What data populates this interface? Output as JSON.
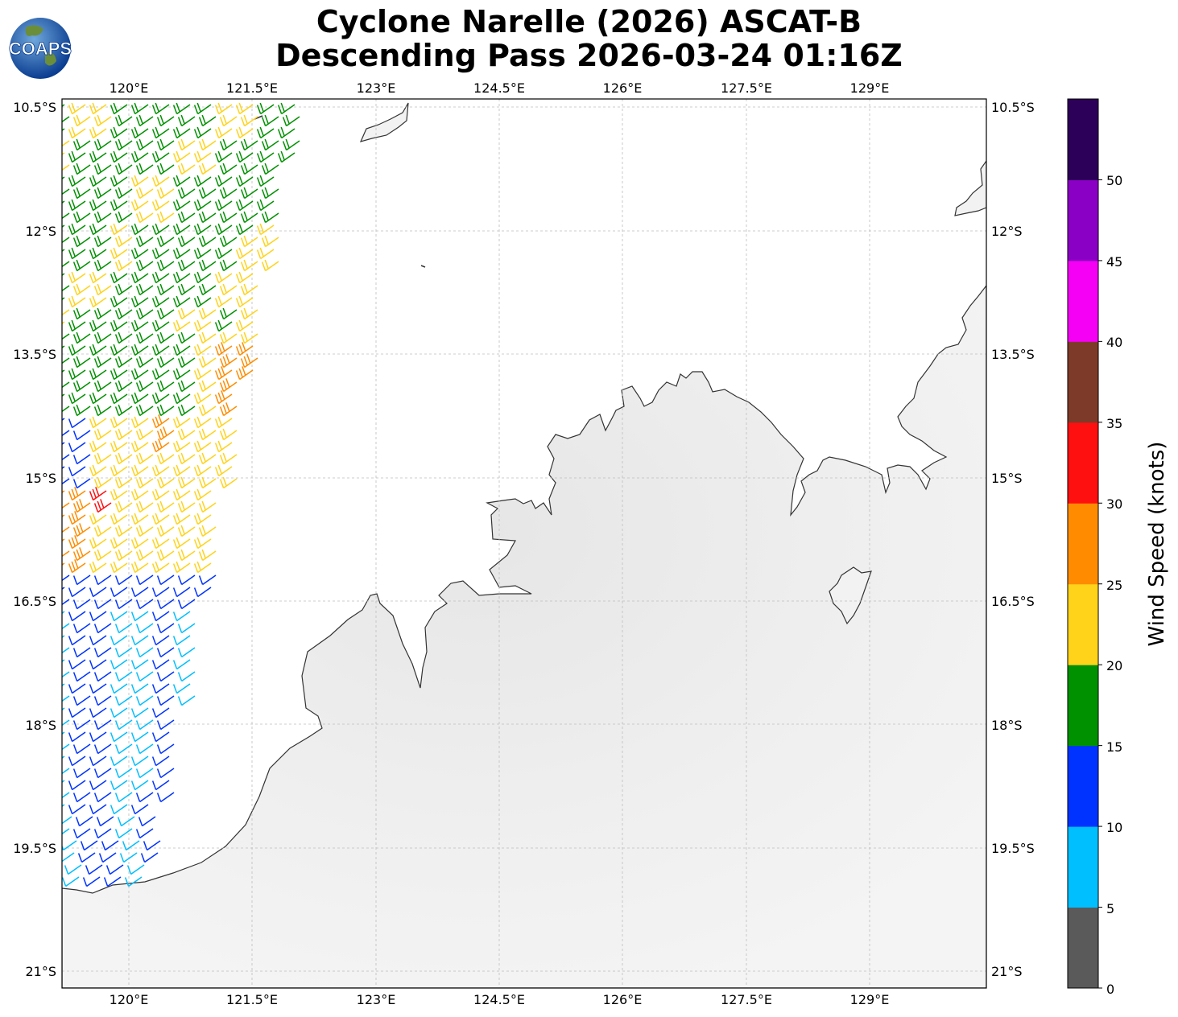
{
  "title_line1": "Cyclone Narelle (2026) ASCAT-B",
  "title_line2": "Descending Pass 2026-03-24 01:16Z",
  "logo_text": "COAPS",
  "x_ticks": [
    "120°E",
    "121.5°E",
    "123°E",
    "124.5°E",
    "126°E",
    "127.5°E",
    "129°E"
  ],
  "y_ticks": [
    "10.5°S",
    "12°S",
    "13.5°S",
    "15°S",
    "16.5°S",
    "18°S",
    "19.5°S",
    "21°S"
  ],
  "colorbar": {
    "title": "Wind Speed (knots)",
    "labels": [
      "0",
      "5",
      "10",
      "15",
      "20",
      "25",
      "30",
      "35",
      "40",
      "45",
      "50"
    ],
    "colors": [
      "#5a5a5a",
      "#00bfff",
      "#0033ff",
      "#009100",
      "#ffd31a",
      "#ff8c00",
      "#ff1010",
      "#7e3a28",
      "#f500f5",
      "#8a00c4",
      "#2c0058"
    ]
  },
  "chart_data": {
    "type": "wind_barb_map",
    "map_extent": {
      "lon": [
        119.2,
        130.4
      ],
      "lat": [
        -21.2,
        -10.4
      ]
    },
    "speed_bins_knots": [
      [
        0,
        5
      ],
      [
        5,
        10
      ],
      [
        10,
        15
      ],
      [
        15,
        20
      ],
      [
        20,
        25
      ],
      [
        25,
        30
      ],
      [
        30,
        35
      ],
      [
        35,
        40
      ],
      [
        40,
        45
      ],
      [
        45,
        50
      ],
      [
        50,
        55
      ]
    ],
    "swath_regions": [
      {
        "lat_range": [
          -10.5,
          -13.5
        ],
        "dominant_speed_knots": "15-20",
        "direction": "southeast"
      },
      {
        "lat_range": [
          -13.5,
          -16.3
        ],
        "dominant_speed_knots": "20-25",
        "max_speed_knots": "30-35",
        "direction": "southeast"
      },
      {
        "lat_range": [
          -16.5,
          -19.8
        ],
        "dominant_speed_knots": "5-15",
        "direction": "southeast"
      }
    ]
  }
}
